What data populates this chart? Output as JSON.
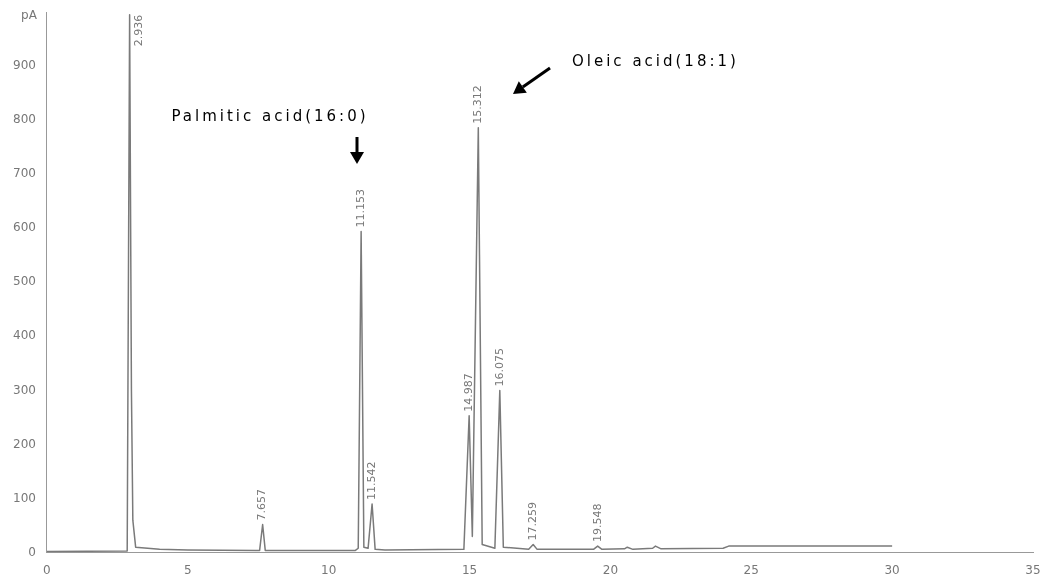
{
  "chart_data": {
    "type": "line",
    "ylabel": "pA",
    "xlim": [
      0,
      35
    ],
    "xticks": [
      0,
      5,
      10,
      15,
      20,
      25,
      30,
      35
    ],
    "ylim": [
      0,
      1000
    ],
    "yticks": [
      0,
      100,
      200,
      300,
      400,
      500,
      600,
      700,
      800,
      900
    ],
    "grid": false,
    "legend": false,
    "marker": "none",
    "line_style": "solid",
    "series": [
      {
        "color": "#7a7a7a",
        "x": [
          0,
          2.85,
          2.936,
          3.0,
          3.05,
          3.15,
          4,
          5,
          7.55,
          7.657,
          7.75,
          10.95,
          11.05,
          11.153,
          11.25,
          11.4,
          11.542,
          11.65,
          12,
          14.8,
          14.987,
          15.1,
          15.312,
          15.45,
          15.9,
          16.075,
          16.2,
          17.1,
          17.259,
          17.4,
          19.4,
          19.548,
          19.7,
          20.5,
          20.6,
          20.8,
          21.5,
          21.6,
          21.8,
          24,
          24.2,
          30
        ],
        "values": [
          2,
          3,
          995,
          300,
          60,
          10,
          6,
          5,
          4,
          52,
          4,
          4,
          8,
          594,
          10,
          8,
          90,
          6,
          5,
          6,
          253,
          30,
          786,
          15,
          8,
          300,
          10,
          6,
          15,
          6,
          6,
          12,
          6,
          7,
          10,
          6,
          8,
          12,
          7,
          8,
          12,
          12
        ]
      }
    ],
    "annotations": [
      {
        "text": "2.936",
        "x": 2.936,
        "y": 995
      },
      {
        "text": "7.657",
        "x": 7.657,
        "y": 52
      },
      {
        "text": "11.153",
        "x": 11.153,
        "y": 594
      },
      {
        "text": "11.542",
        "x": 11.542,
        "y": 90
      },
      {
        "text": "14.987",
        "x": 14.987,
        "y": 253
      },
      {
        "text": "15.312",
        "x": 15.312,
        "y": 786
      },
      {
        "text": "16.075",
        "x": 16.075,
        "y": 300
      },
      {
        "text": "17.259",
        "x": 17.259,
        "y": 15
      },
      {
        "text": "19.548",
        "x": 19.548,
        "y": 12
      },
      "Palmitic acid(16:0)",
      "Oleic acid(18:1)"
    ]
  }
}
